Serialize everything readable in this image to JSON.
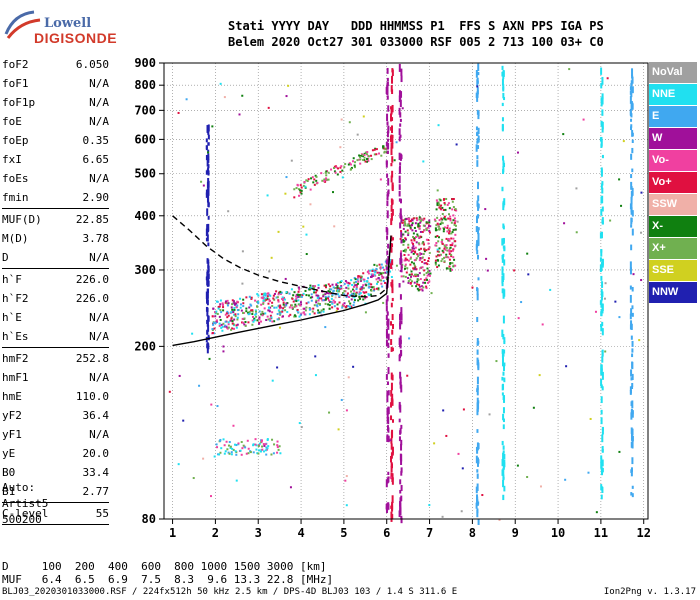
{
  "logo": {
    "top": "Lowell",
    "bottom": "DIGISONDE"
  },
  "header": {
    "labels": "Stati YYYY DAY   DDD HHMMSS P1  FFS S AXN PPS IGA PS",
    "values": "Belem 2020 Oct27 301 033000 RSF 005 2 713 100 03+ C0"
  },
  "params": [
    {
      "k": "foF2",
      "v": "6.050"
    },
    {
      "k": "foF1",
      "v": "N/A"
    },
    {
      "k": "foF1p",
      "v": "N/A"
    },
    {
      "k": "foE",
      "v": "N/A"
    },
    {
      "k": "foEp",
      "v": "0.35"
    },
    {
      "k": "fxI",
      "v": "6.65"
    },
    {
      "k": "foEs",
      "v": "N/A"
    },
    {
      "k": "fmin",
      "v": "2.90"
    },
    {
      "sep": true
    },
    {
      "k": "MUF(D)",
      "v": "22.85"
    },
    {
      "k": "M(D)",
      "v": "3.78"
    },
    {
      "k": "D",
      "v": "N/A"
    },
    {
      "sep": true
    },
    {
      "k": "h`F",
      "v": "226.0"
    },
    {
      "k": "h`F2",
      "v": "226.0"
    },
    {
      "k": "h`E",
      "v": "N/A"
    },
    {
      "k": "h`Es",
      "v": "N/A"
    },
    {
      "sep": true
    },
    {
      "k": "hmF2",
      "v": "252.8"
    },
    {
      "k": "hmF1",
      "v": "N/A"
    },
    {
      "k": "hmE",
      "v": "110.0"
    },
    {
      "k": "yF2",
      "v": "36.4"
    },
    {
      "k": "yF1",
      "v": "N/A"
    },
    {
      "k": "yE",
      "v": "20.0"
    },
    {
      "k": "B0",
      "v": "33.4"
    },
    {
      "k": "B1",
      "v": "2.77"
    },
    {
      "sep": true
    },
    {
      "k": "C-level",
      "v": "55"
    },
    {
      "sep": true
    }
  ],
  "auto": [
    "Auto:",
    "Artist5",
    "500200"
  ],
  "legend": [
    {
      "label": "NoVal",
      "color": "#a0a0a0"
    },
    {
      "label": "NNE",
      "color": "#20e0f0"
    },
    {
      "label": "E",
      "color": "#40a8f0"
    },
    {
      "label": "W",
      "color": "#a0109a"
    },
    {
      "label": "Vo-",
      "color": "#f040a0"
    },
    {
      "label": "Vo+",
      "color": "#e01040"
    },
    {
      "label": "SSW",
      "color": "#f0b0a8"
    },
    {
      "label": "X-",
      "color": "#108010"
    },
    {
      "label": "X+",
      "color": "#70b050"
    },
    {
      "label": "SSE",
      "color": "#d0d020"
    },
    {
      "label": "NNW",
      "color": "#2020b0"
    }
  ],
  "bottom": {
    "d_row": "D     100  200  400  600  800 1000 1500 3000 [km]",
    "muf_row": "MUF   6.4  6.5  6.9  7.5  8.3  9.6 13.3 22.8 [MHz]"
  },
  "footer": "BLJ03_2020301033000.RSF / 224fx512h 50 kHz 2.5 km / DPS-4D BLJ03 103 / 1.4 S 311.6 E",
  "version": "Ion2Png v. 1.3.17",
  "chart_data": {
    "type": "scatter",
    "x_ticks": [
      1,
      2,
      3,
      4,
      5,
      6,
      7,
      8,
      9,
      10,
      11,
      12
    ],
    "y_ticks": [
      80,
      200,
      300,
      400,
      500,
      600,
      700,
      800,
      900
    ],
    "xlim": [
      0.8,
      12.1
    ],
    "y_scale": "log",
    "ylim": [
      80,
      900
    ],
    "grid": true,
    "series": [
      {
        "type": "trace",
        "color": "#000000",
        "style": "solid",
        "x": [
          1.0,
          1.5,
          2.0,
          2.5,
          3.0,
          3.5,
          4.0,
          4.5,
          5.0,
          5.5,
          5.8,
          6.0,
          6.05,
          6.1
        ],
        "y": [
          201,
          205,
          210,
          215,
          220,
          225,
          230,
          236,
          242,
          250,
          256,
          265,
          310,
          360
        ]
      },
      {
        "type": "trace",
        "color": "#000000",
        "style": "dashed",
        "x": [
          1.0,
          1.4,
          1.8,
          2.2,
          2.6,
          3.0,
          3.5,
          4.0,
          4.5,
          5.0,
          5.5,
          5.8,
          6.0
        ],
        "y": [
          400,
          370,
          340,
          318,
          303,
          292,
          282,
          275,
          268,
          262,
          260,
          262,
          272
        ]
      }
    ]
  }
}
